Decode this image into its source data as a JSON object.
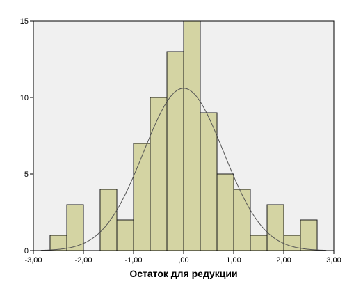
{
  "chart_data": {
    "type": "bar",
    "subtype": "histogram",
    "title": "",
    "xlabel": "Остаток для редукции",
    "ylabel": "",
    "xlim": [
      -3.0,
      3.0
    ],
    "ylim": [
      0,
      15
    ],
    "bin_width": 0.333,
    "bins": [
      {
        "start": -2.667,
        "end": -2.333,
        "count": 1
      },
      {
        "start": -2.333,
        "end": -2.0,
        "count": 3
      },
      {
        "start": -1.667,
        "end": -1.333,
        "count": 4
      },
      {
        "start": -1.333,
        "end": -1.0,
        "count": 2
      },
      {
        "start": -1.0,
        "end": -0.667,
        "count": 7
      },
      {
        "start": -0.667,
        "end": -0.333,
        "count": 10
      },
      {
        "start": -0.333,
        "end": 0.0,
        "count": 13
      },
      {
        "start": 0.0,
        "end": 0.333,
        "count": 15
      },
      {
        "start": 0.333,
        "end": 0.667,
        "count": 9
      },
      {
        "start": 0.667,
        "end": 1.0,
        "count": 5
      },
      {
        "start": 1.0,
        "end": 1.333,
        "count": 4
      },
      {
        "start": 1.333,
        "end": 1.667,
        "count": 1
      },
      {
        "start": 1.667,
        "end": 2.0,
        "count": 3
      },
      {
        "start": 2.0,
        "end": 2.333,
        "count": 1
      },
      {
        "start": 2.333,
        "end": 2.667,
        "count": 2
      }
    ],
    "x_ticks": [
      -3,
      -2,
      -1,
      0,
      1,
      2,
      3
    ],
    "x_tick_labels": [
      "-3,00",
      "-2,00",
      "-1,00",
      ",00",
      "1,00",
      "2,00",
      "3,00"
    ],
    "y_ticks": [
      0,
      5,
      10,
      15
    ],
    "y_tick_labels": [
      "0",
      "5",
      "10",
      "15"
    ],
    "normal_curve": {
      "mean": 0.0,
      "sd": 0.8,
      "peak": 10.6
    },
    "grid": false,
    "colors": {
      "bar_fill": "#d4d4a3",
      "bar_stroke": "#1a1a1a",
      "plot_background": "#f0f0f0",
      "curve": "#555555"
    }
  }
}
